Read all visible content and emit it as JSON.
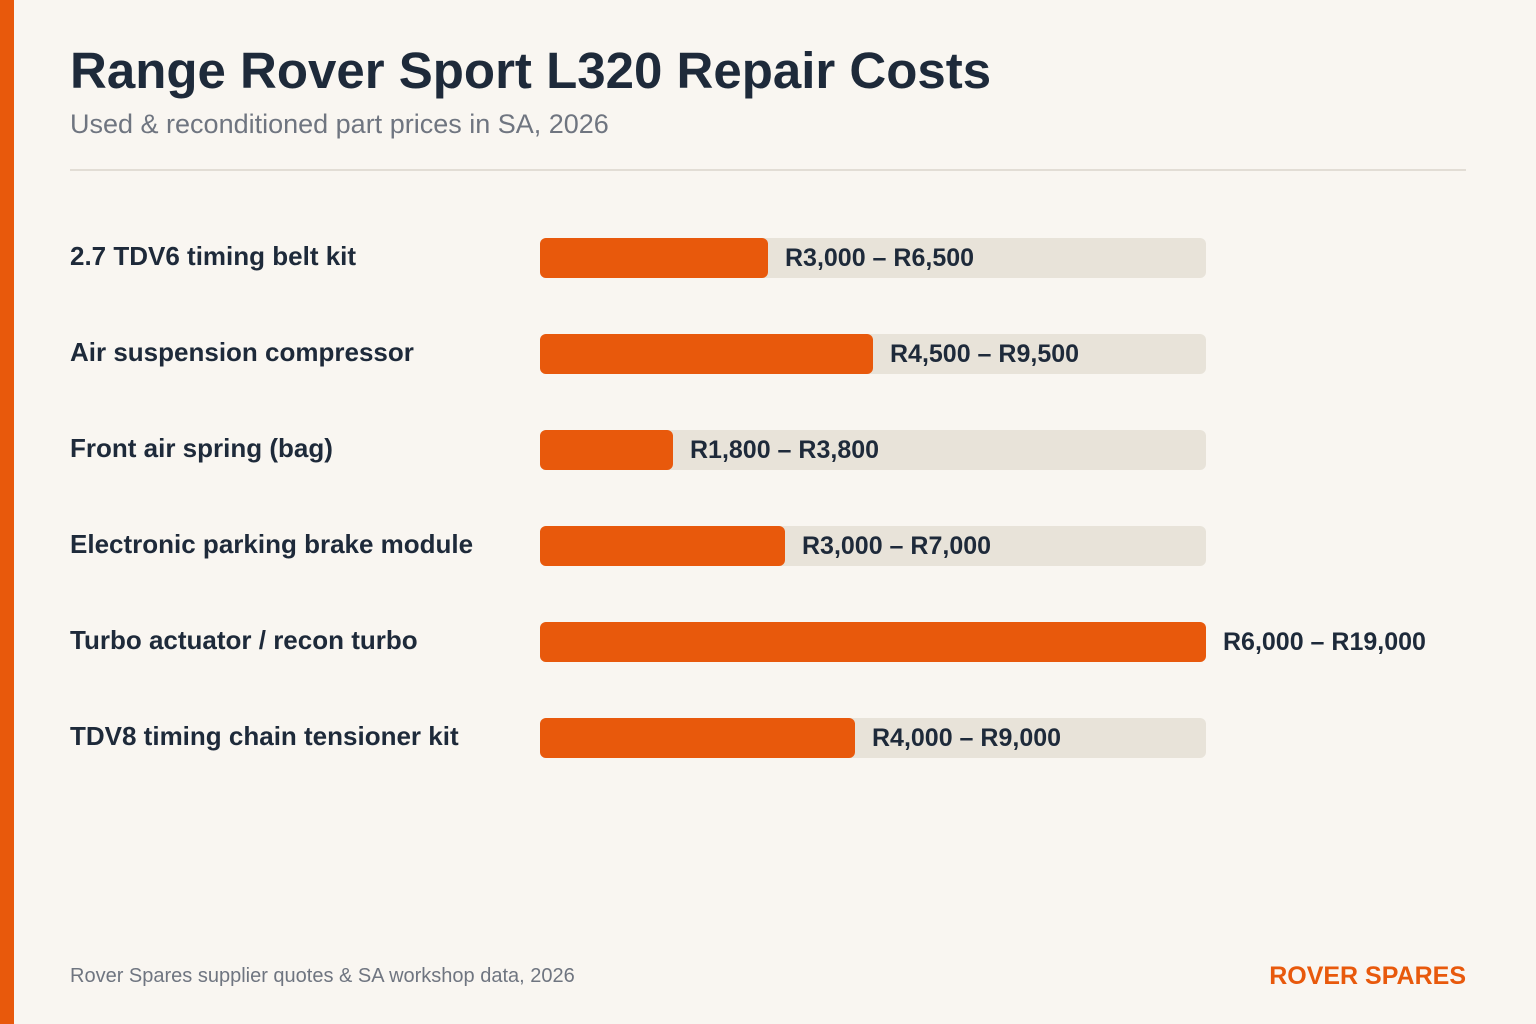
{
  "header": {
    "title": "Range Rover Sport L320 Repair Costs",
    "subtitle": "Used & reconditioned part prices in SA, 2026"
  },
  "footer": {
    "source": "Rover Spares supplier quotes & SA workshop data, 2026",
    "brand": "ROVER SPARES"
  },
  "colors": {
    "accent": "#e8590c",
    "track": "#e8e3d9",
    "text": "#1e2a3a",
    "muted": "#6f7580",
    "background": "#f9f6f1"
  },
  "chart_data": {
    "type": "bar",
    "orientation": "horizontal",
    "unit": "R",
    "xlim": [
      0,
      19000
    ],
    "bar_value": "upper price",
    "grid": false,
    "categories": [
      "2.7 TDV6 timing belt kit",
      "Air suspension compressor",
      "Front air spring (bag)",
      "Electronic parking brake module",
      "Turbo actuator / recon turbo",
      "TDV8 timing chain tensioner kit"
    ],
    "low": [
      3000,
      4500,
      1800,
      3000,
      6000,
      4000
    ],
    "high": [
      6500,
      9500,
      3800,
      7000,
      19000,
      9000
    ],
    "value_labels": [
      "R3,000 – R6,500",
      "R4,500 – R9,500",
      "R1,800 – R3,800",
      "R3,000 – R7,000",
      "R6,000 – R19,000",
      "R4,000 – R9,000"
    ]
  }
}
